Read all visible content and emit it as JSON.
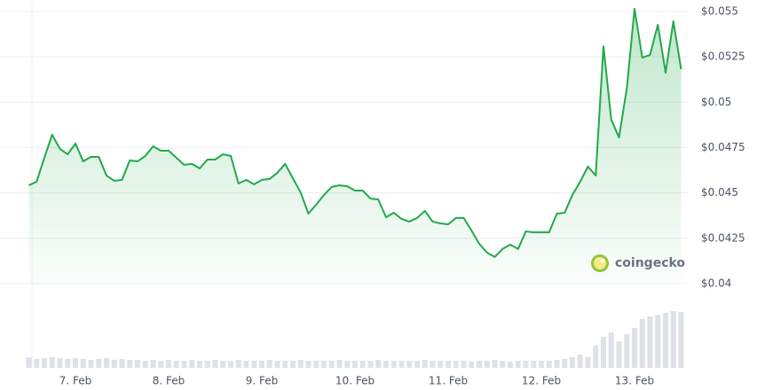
{
  "watermark": "coingecko",
  "chart_data": [
    {
      "type": "area",
      "color": "#22a94a",
      "grid": true,
      "categories": [
        null,
        null,
        null,
        null,
        null,
        null,
        "7. Feb",
        null,
        null,
        null,
        null,
        null,
        null,
        null,
        null,
        null,
        null,
        null,
        "8. Feb",
        null,
        null,
        null,
        null,
        null,
        null,
        null,
        null,
        null,
        null,
        null,
        "9. Feb",
        null,
        null,
        null,
        null,
        null,
        null,
        null,
        null,
        null,
        null,
        null,
        "10. Feb",
        null,
        null,
        null,
        null,
        null,
        null,
        null,
        null,
        null,
        null,
        null,
        "11. Feb",
        null,
        null,
        null,
        null,
        null,
        null,
        null,
        null,
        null,
        null,
        null,
        "12. Feb",
        null,
        null,
        null,
        null,
        null,
        null,
        null,
        null,
        null,
        null,
        null,
        "13. Feb",
        null,
        null,
        null,
        null,
        null,
        null
      ],
      "values": [
        0.04542,
        0.04562,
        0.04694,
        0.04821,
        0.04743,
        0.04713,
        0.04772,
        0.04674,
        0.04699,
        0.04699,
        0.04596,
        0.04567,
        0.04572,
        0.04679,
        0.04674,
        0.04704,
        0.04757,
        0.04733,
        0.04733,
        0.04694,
        0.04655,
        0.0466,
        0.04635,
        0.04684,
        0.04684,
        0.04713,
        0.04704,
        0.04552,
        0.04572,
        0.04547,
        0.04572,
        0.04577,
        0.04611,
        0.0466,
        0.04581,
        0.04503,
        0.04386,
        0.04435,
        0.04489,
        0.04533,
        0.04542,
        0.04537,
        0.04513,
        0.04513,
        0.04469,
        0.04464,
        0.04366,
        0.04391,
        0.04357,
        0.04342,
        0.04362,
        0.04401,
        0.04342,
        0.04332,
        0.04327,
        0.04362,
        0.04362,
        0.04293,
        0.0422,
        0.04171,
        0.04147,
        0.04191,
        0.04215,
        0.04191,
        0.04288,
        0.04283,
        0.04283,
        0.04283,
        0.04386,
        0.04391,
        0.04489,
        0.04562,
        0.04645,
        0.04596,
        0.05309,
        0.04904,
        0.04806,
        0.05075,
        0.05515,
        0.05246,
        0.05261,
        0.05427,
        0.05163,
        0.05446,
        0.05182
      ],
      "ylim": [
        0.04,
        0.055
      ],
      "yticks": [
        {
          "value": 0.04,
          "label": "$0.04"
        },
        {
          "value": 0.0425,
          "label": "$0.0425"
        },
        {
          "value": 0.045,
          "label": "$0.045"
        },
        {
          "value": 0.0475,
          "label": "$0.0475"
        },
        {
          "value": 0.05,
          "label": "$0.05"
        },
        {
          "value": 0.0525,
          "label": "$0.0525"
        },
        {
          "value": 0.055,
          "label": "$0.055"
        }
      ]
    },
    {
      "type": "bar",
      "color": "#dde2e8",
      "values": [
        12,
        10,
        11,
        12,
        11,
        10,
        11,
        10,
        9,
        10,
        11,
        9,
        10,
        9,
        9,
        8,
        9,
        8,
        9,
        8,
        8,
        9,
        8,
        8,
        9,
        8,
        8,
        9,
        8,
        8,
        8,
        9,
        8,
        8,
        8,
        9,
        8,
        8,
        8,
        8,
        9,
        8,
        8,
        8,
        8,
        9,
        8,
        8,
        8,
        8,
        8,
        9,
        8,
        8,
        8,
        8,
        8,
        7,
        8,
        8,
        9,
        8,
        7,
        8,
        8,
        8,
        8,
        8,
        9,
        10,
        12,
        15,
        12,
        25,
        35,
        40,
        30,
        38,
        45,
        55,
        58,
        60,
        62,
        64,
        63
      ],
      "ylim": [
        0,
        70
      ]
    }
  ]
}
